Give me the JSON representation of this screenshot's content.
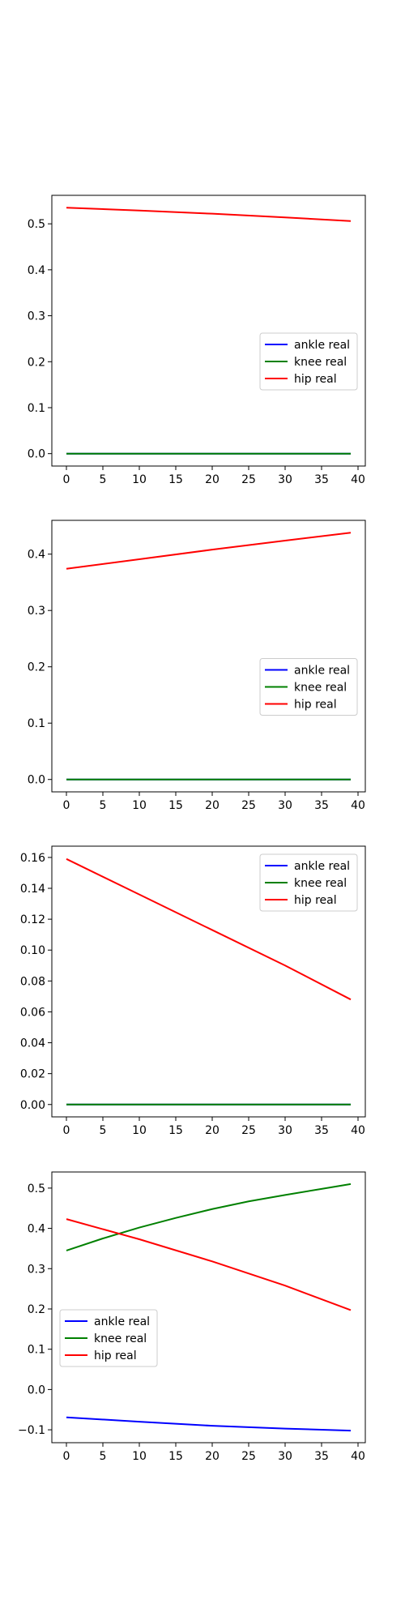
{
  "chart_data": [
    {
      "type": "line",
      "title": "",
      "xlabel": "",
      "ylabel": "",
      "xlim": [
        -2,
        41
      ],
      "ylim": [
        -0.027,
        0.562
      ],
      "xticks": [
        0,
        5,
        10,
        15,
        20,
        25,
        30,
        35,
        40
      ],
      "yticks": [
        0.0,
        0.1,
        0.2,
        0.3,
        0.4,
        0.5
      ],
      "ytick_labels": [
        "0.0",
        "0.1",
        "0.2",
        "0.3",
        "0.4",
        "0.5"
      ],
      "legend": "center-right",
      "series": [
        {
          "name": "ankle real",
          "color": "#0000ff",
          "x": [
            0,
            39
          ],
          "y": [
            0.0,
            0.0
          ]
        },
        {
          "name": "knee real",
          "color": "#008000",
          "x": [
            0,
            39
          ],
          "y": [
            0.0,
            0.0
          ]
        },
        {
          "name": "hip real",
          "color": "#ff0000",
          "x": [
            0,
            10,
            20,
            30,
            39
          ],
          "y": [
            0.535,
            0.529,
            0.522,
            0.514,
            0.506
          ]
        }
      ]
    },
    {
      "type": "line",
      "title": "",
      "xlabel": "",
      "ylabel": "",
      "xlim": [
        -2,
        41
      ],
      "ylim": [
        -0.022,
        0.46
      ],
      "xticks": [
        0,
        5,
        10,
        15,
        20,
        25,
        30,
        35,
        40
      ],
      "yticks": [
        0.0,
        0.1,
        0.2,
        0.3,
        0.4
      ],
      "ytick_labels": [
        "0.0",
        "0.1",
        "0.2",
        "0.3",
        "0.4"
      ],
      "legend": "center-right",
      "series": [
        {
          "name": "ankle real",
          "color": "#0000ff",
          "x": [
            0,
            39
          ],
          "y": [
            0.0,
            0.0
          ]
        },
        {
          "name": "knee real",
          "color": "#008000",
          "x": [
            0,
            39
          ],
          "y": [
            0.0,
            0.0
          ]
        },
        {
          "name": "hip real",
          "color": "#ff0000",
          "x": [
            0,
            10,
            20,
            30,
            39
          ],
          "y": [
            0.374,
            0.391,
            0.408,
            0.424,
            0.438
          ]
        }
      ]
    },
    {
      "type": "line",
      "title": "",
      "xlabel": "",
      "ylabel": "",
      "xlim": [
        -2,
        41
      ],
      "ylim": [
        -0.008,
        0.1673
      ],
      "xticks": [
        0,
        5,
        10,
        15,
        20,
        25,
        30,
        35,
        40
      ],
      "yticks": [
        0.0,
        0.02,
        0.04,
        0.06,
        0.08,
        0.1,
        0.12,
        0.14,
        0.16
      ],
      "ytick_labels": [
        "0.00",
        "0.02",
        "0.04",
        "0.06",
        "0.08",
        "0.10",
        "0.12",
        "0.14",
        "0.16"
      ],
      "legend": "top-right",
      "series": [
        {
          "name": "ankle real",
          "color": "#0000ff",
          "x": [
            0,
            39
          ],
          "y": [
            0.0,
            0.0
          ]
        },
        {
          "name": "knee real",
          "color": "#008000",
          "x": [
            0,
            39
          ],
          "y": [
            0.0,
            0.0
          ]
        },
        {
          "name": "hip real",
          "color": "#ff0000",
          "x": [
            0,
            10,
            20,
            30,
            39
          ],
          "y": [
            0.159,
            0.136,
            0.113,
            0.09,
            0.068
          ]
        }
      ]
    },
    {
      "type": "line",
      "title": "",
      "xlabel": "",
      "ylabel": "",
      "xlim": [
        -2,
        41
      ],
      "ylim": [
        -0.132,
        0.54
      ],
      "xticks": [
        0,
        5,
        10,
        15,
        20,
        25,
        30,
        35,
        40
      ],
      "yticks": [
        -0.1,
        0.0,
        0.1,
        0.2,
        0.3,
        0.4,
        0.5
      ],
      "ytick_labels": [
        "−0.1",
        "0.0",
        "0.1",
        "0.2",
        "0.3",
        "0.4",
        "0.5"
      ],
      "legend": "center-left",
      "series": [
        {
          "name": "ankle real",
          "color": "#0000ff",
          "x": [
            0,
            10,
            20,
            30,
            39
          ],
          "y": [
            -0.069,
            -0.08,
            -0.09,
            -0.097,
            -0.102
          ]
        },
        {
          "name": "knee real",
          "color": "#008000",
          "x": [
            0,
            5,
            10,
            15,
            20,
            25,
            30,
            35,
            39
          ],
          "y": [
            0.345,
            0.375,
            0.402,
            0.426,
            0.448,
            0.467,
            0.483,
            0.498,
            0.51
          ]
        },
        {
          "name": "hip real",
          "color": "#ff0000",
          "x": [
            0,
            10,
            20,
            30,
            39
          ],
          "y": [
            0.423,
            0.373,
            0.318,
            0.258,
            0.197
          ]
        }
      ]
    }
  ]
}
